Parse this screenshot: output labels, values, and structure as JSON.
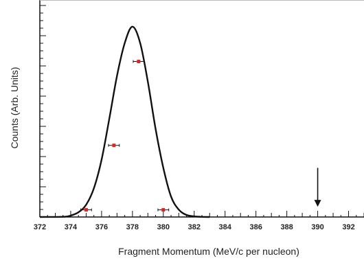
{
  "chart_data": {
    "type": "scatter",
    "title": "",
    "xlabel": "Fragment Momentum (MeV/c per nucleon)",
    "ylabel": "Counts (Arb. Units)",
    "xlim": [
      372,
      393
    ],
    "ylim": [
      0,
      100
    ],
    "x_ticks": [
      372,
      374,
      376,
      378,
      380,
      382,
      384,
      386,
      388,
      390,
      392
    ],
    "x_tick_labels": [
      "372",
      "374",
      "376",
      "378",
      "380",
      "382",
      "384",
      "386",
      "388",
      "390",
      "392"
    ],
    "y_tick_labels_shown": false,
    "grid": false,
    "series": [
      {
        "kind": "curve",
        "color": "#111111",
        "x": [
          372.0,
          373.5,
          374.0,
          374.5,
          375.0,
          375.5,
          376.0,
          376.5,
          377.0,
          377.5,
          378.0,
          378.5,
          379.0,
          379.5,
          380.0,
          380.5,
          381.0,
          381.5,
          382.0,
          382.5,
          383.0
        ],
        "y": [
          0.0,
          0.1,
          0.7,
          2.3,
          6.0,
          14.0,
          28.0,
          48.0,
          69.0,
          85.0,
          93.0,
          85.0,
          66.0,
          43.0,
          24.0,
          10.0,
          3.6,
          1.0,
          0.3,
          0.05,
          0.0
        ]
      },
      {
        "kind": "points",
        "color": "#e02424",
        "x": [
          375.0,
          376.8,
          378.4,
          380.0
        ],
        "y": [
          3.5,
          35.0,
          76.0,
          3.5
        ],
        "xerr": [
          0.35,
          0.35,
          0.35,
          0.35
        ]
      }
    ],
    "annotations": [
      {
        "kind": "arrow-down",
        "x": 390,
        "y_from": 24,
        "y_to": 5,
        "color": "#111111"
      }
    ]
  }
}
